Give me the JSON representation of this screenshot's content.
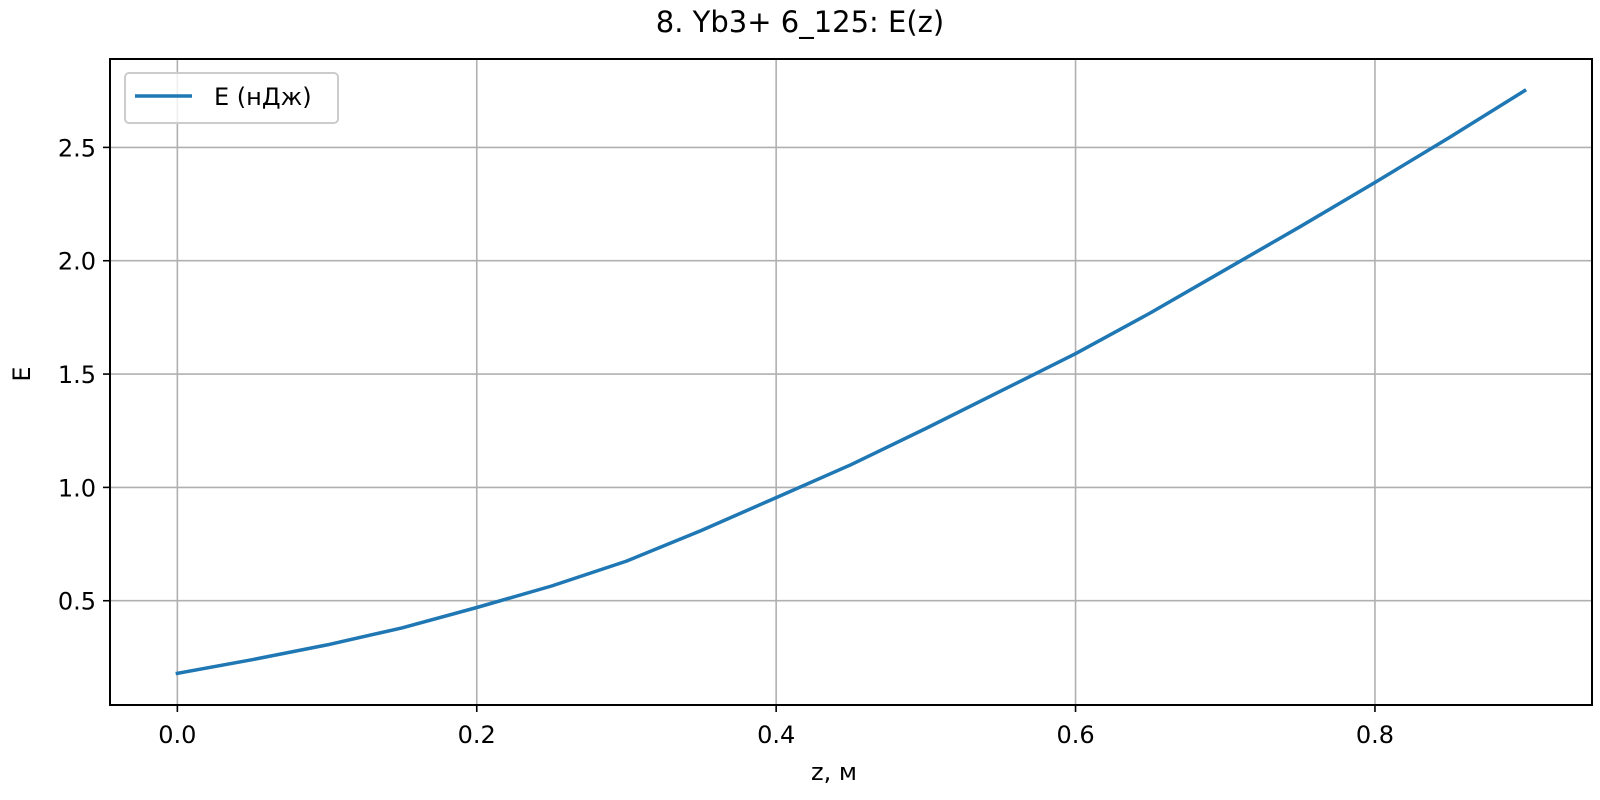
{
  "chart_data": {
    "type": "line",
    "title": "8. Yb3+ 6_125: E(z)",
    "xlabel": "z, м",
    "ylabel": "E",
    "xlim": [
      -0.045,
      0.945
    ],
    "ylim": [
      0.04,
      2.89
    ],
    "xticks": [
      0.0,
      0.2,
      0.4,
      0.6,
      0.8
    ],
    "xtick_labels": [
      "0.0",
      "0.2",
      "0.4",
      "0.6",
      "0.8"
    ],
    "yticks": [
      0.5,
      1.0,
      1.5,
      2.0,
      2.5
    ],
    "ytick_labels": [
      "0.5",
      "1.0",
      "1.5",
      "2.0",
      "2.5"
    ],
    "grid": true,
    "legend": {
      "placement": "upper-left"
    },
    "series": [
      {
        "name": "E (нДж)",
        "color": "#1f77b4",
        "x": [
          0.0,
          0.05,
          0.1,
          0.15,
          0.2,
          0.25,
          0.3,
          0.35,
          0.4,
          0.45,
          0.5,
          0.55,
          0.6,
          0.65,
          0.7,
          0.75,
          0.8,
          0.85,
          0.9
        ],
        "y": [
          0.18,
          0.24,
          0.305,
          0.38,
          0.47,
          0.565,
          0.675,
          0.81,
          0.955,
          1.1,
          1.26,
          1.425,
          1.59,
          1.77,
          1.96,
          2.15,
          2.345,
          2.545,
          2.75
        ]
      }
    ]
  }
}
